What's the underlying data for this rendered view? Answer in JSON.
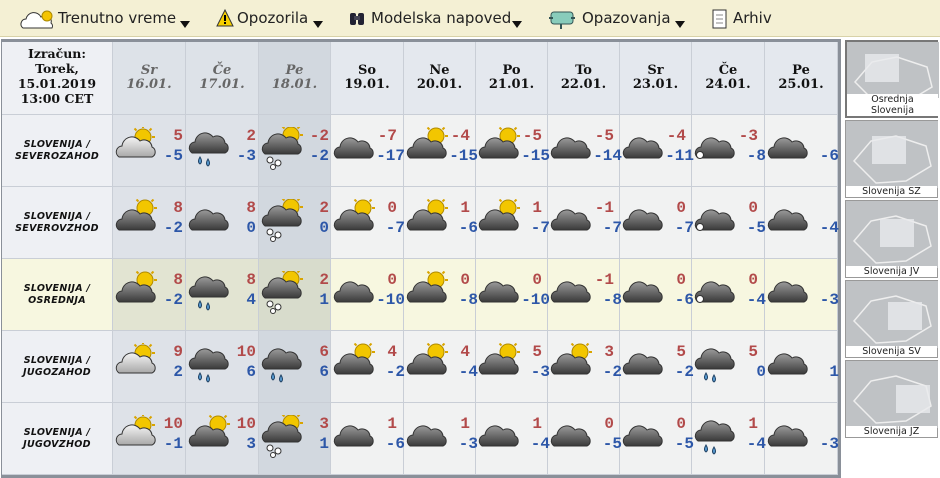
{
  "menu": [
    "Trenutno vreme",
    "Opozorila",
    "Modelska napoved",
    "Opazovanja",
    "Arhiv"
  ],
  "header": {
    "lines": [
      "Izračun:",
      "Torek,",
      "15.01.2019",
      "13:00 CET"
    ]
  },
  "days": [
    {
      "day": "Sr",
      "date": "16.01."
    },
    {
      "day": "Če",
      "date": "17.01."
    },
    {
      "day": "Pe",
      "date": "18.01."
    },
    {
      "day": "So",
      "date": "19.01."
    },
    {
      "day": "Ne",
      "date": "20.01."
    },
    {
      "day": "Po",
      "date": "21.01."
    },
    {
      "day": "To",
      "date": "22.01."
    },
    {
      "day": "Sr",
      "date": "23.01."
    },
    {
      "day": "Če",
      "date": "24.01."
    },
    {
      "day": "Pe",
      "date": "25.01."
    }
  ],
  "rows": [
    {
      "region": [
        "SLOVENIJA /",
        "SEVEROZAHOD"
      ],
      "cells": [
        {
          "max": 5,
          "min": -5
        },
        {
          "max": 2,
          "min": -3
        },
        {
          "max": -2,
          "min": -2
        },
        {
          "max": -7,
          "min": -17
        },
        {
          "max": -4,
          "min": -15
        },
        {
          "max": -5,
          "min": -15
        },
        {
          "max": -5,
          "min": -14
        },
        {
          "max": -4,
          "min": -11
        },
        {
          "max": -3,
          "min": -8
        },
        {
          "min": -6
        }
      ]
    },
    {
      "region": [
        "SLOVENIJA /",
        "SEVEROVZHOD"
      ],
      "cells": [
        {
          "max": 8,
          "min": -2
        },
        {
          "max": 8,
          "min": 0
        },
        {
          "max": 2,
          "min": 0
        },
        {
          "max": 0,
          "min": -7
        },
        {
          "max": 1,
          "min": -6
        },
        {
          "max": 1,
          "min": -7
        },
        {
          "max": -1,
          "min": -7
        },
        {
          "max": 0,
          "min": -7
        },
        {
          "max": 0,
          "min": -5
        },
        {
          "min": -4
        }
      ]
    },
    {
      "region": [
        "SLOVENIJA /",
        "OSREDNJA"
      ],
      "cells": [
        {
          "max": 8,
          "min": -2
        },
        {
          "max": 8,
          "min": 4
        },
        {
          "max": 2,
          "min": 1
        },
        {
          "max": 0,
          "min": -10
        },
        {
          "max": 0,
          "min": -8
        },
        {
          "max": 0,
          "min": -10
        },
        {
          "max": -1,
          "min": -8
        },
        {
          "max": 0,
          "min": -6
        },
        {
          "max": 0,
          "min": -4
        },
        {
          "min": -3
        }
      ]
    },
    {
      "region": [
        "SLOVENIJA /",
        "JUGOZAHOD"
      ],
      "cells": [
        {
          "max": 9,
          "min": 2
        },
        {
          "max": 10,
          "min": 6
        },
        {
          "max": 6,
          "min": 6
        },
        {
          "max": 4,
          "min": -2
        },
        {
          "max": 4,
          "min": -4
        },
        {
          "max": 5,
          "min": -3
        },
        {
          "max": 3,
          "min": -2
        },
        {
          "max": 5,
          "min": -2
        },
        {
          "max": 5,
          "min": 0
        },
        {
          "min": 1
        }
      ]
    },
    {
      "region": [
        "SLOVENIJA /",
        "JUGOVZHOD"
      ],
      "cells": [
        {
          "max": 10,
          "min": -1
        },
        {
          "max": 10,
          "min": 3
        },
        {
          "max": 3,
          "min": 1
        },
        {
          "max": 1,
          "min": -6
        },
        {
          "max": 1,
          "min": -3
        },
        {
          "max": 1,
          "min": -4
        },
        {
          "max": 0,
          "min": -5
        },
        {
          "max": 0,
          "min": -5
        },
        {
          "max": 1,
          "min": -4
        },
        {
          "min": -3
        }
      ]
    }
  ],
  "sidebar": [
    [
      "Osrednja",
      "Slovenija"
    ],
    [
      "Slovenija SZ"
    ],
    [
      "Slovenija JV"
    ],
    [
      "Slovenija SV"
    ],
    [
      "Slovenija JZ"
    ]
  ]
}
